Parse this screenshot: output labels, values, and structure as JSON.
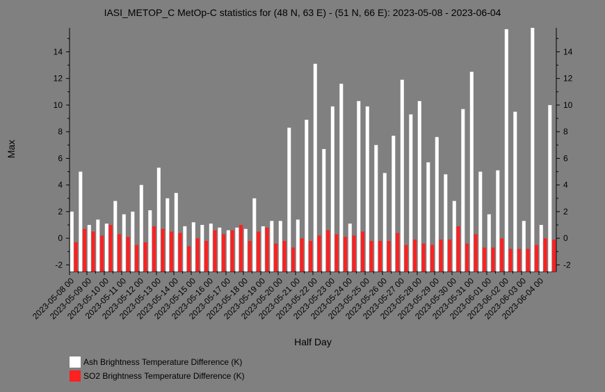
{
  "chart_data": {
    "type": "bar",
    "title": "IASI_METOP_C MetOp-C statistics for (48 N, 63 E) - (51 N, 66 E): 2023-05-08 - 2023-06-04",
    "xlabel": "Half Day",
    "ylabel": "Max",
    "ylim": [
      -2.5,
      15.8
    ],
    "yticks": [
      -2,
      0,
      2,
      4,
      6,
      8,
      10,
      12,
      14
    ],
    "grid": false,
    "legend_placement": "bottom-left",
    "tick_labels": [
      "2023-05-08 00",
      "2023-05-09 00",
      "2023-05-10 00",
      "2023-05-11 00",
      "2023-05-12 00",
      "2023-05-13 00",
      "2023-05-14 00",
      "2023-05-15 00",
      "2023-05-16 00",
      "2023-05-17 00",
      "2023-05-18 00",
      "2023-05-19 00",
      "2023-05-20 00",
      "2023-05-21 00",
      "2023-05-22 00",
      "2023-05-23 00",
      "2023-05-24 00",
      "2023-05-25 00",
      "2023-05-26 00",
      "2023-05-27 00",
      "2023-05-28 00",
      "2023-05-29 00",
      "2023-05-30 00",
      "2023-05-31 00",
      "2023-06-01 00",
      "2023-06-02 00",
      "2023-06-03 00",
      "2023-06-04 00"
    ],
    "series": [
      {
        "name": "Ash Brightness Temperature Difference (K)",
        "color": "#ffffff",
        "values": [
          2.0,
          5.0,
          1.0,
          1.4,
          1.1,
          2.8,
          1.8,
          2.0,
          4.0,
          2.1,
          5.3,
          3.0,
          3.4,
          0.9,
          1.2,
          1.0,
          1.1,
          0.8,
          0.6,
          0.8,
          0.7,
          3.0,
          0.9,
          1.3,
          1.3,
          8.3,
          1.4,
          8.9,
          13.1,
          6.7,
          9.9,
          11.6,
          1.1,
          10.3,
          9.9,
          7.0,
          4.9,
          7.7,
          11.9,
          9.3,
          10.3,
          5.7,
          7.6,
          4.8,
          2.8,
          9.7,
          12.5,
          5.0,
          1.8,
          5.1,
          15.7,
          9.5,
          1.3,
          15.8,
          1.0,
          10.0
        ]
      },
      {
        "name": "SO2 Brightness Temperature Difference (K)",
        "color": "#ff2020",
        "values": [
          -0.3,
          0.7,
          0.5,
          0.2,
          1.0,
          0.3,
          0.1,
          -0.5,
          -0.3,
          0.9,
          0.7,
          0.5,
          0.4,
          -0.6,
          0.0,
          -0.2,
          0.6,
          0.3,
          0.6,
          1.0,
          -0.2,
          0.5,
          0.8,
          -0.4,
          -0.2,
          -0.7,
          0.0,
          -0.2,
          0.2,
          0.6,
          0.3,
          0.1,
          0.2,
          0.5,
          -0.2,
          -0.2,
          -0.2,
          0.4,
          -0.5,
          -0.1,
          -0.4,
          -0.5,
          -0.1,
          -0.1,
          0.9,
          -0.4,
          0.3,
          -0.7,
          -0.7,
          0.0,
          -0.8,
          -0.8,
          -0.8,
          -0.5,
          0.0,
          -0.1
        ]
      }
    ]
  }
}
